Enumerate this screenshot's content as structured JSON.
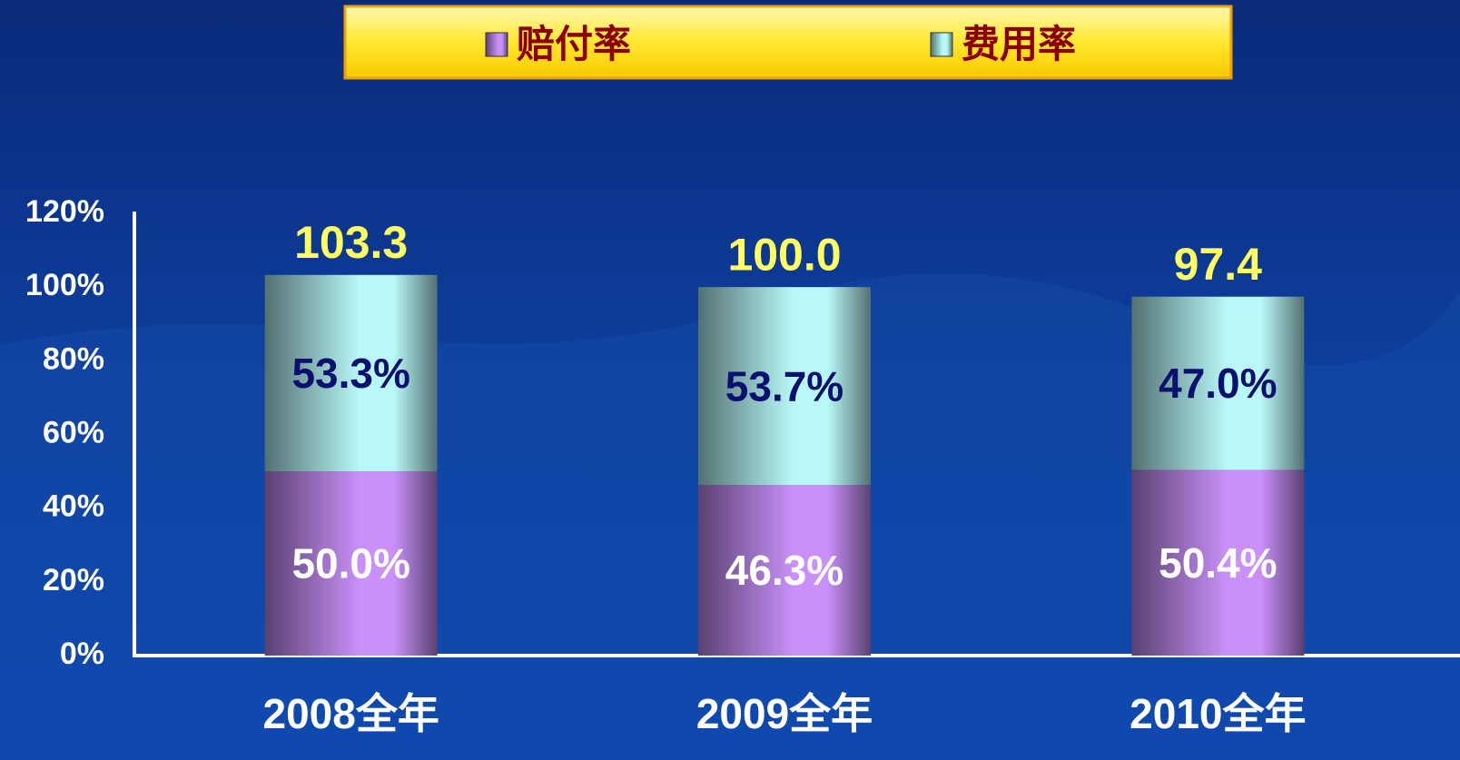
{
  "chart_data": {
    "type": "stacked_bar",
    "categories": [
      "2008全年",
      "2009全年",
      "2010全年"
    ],
    "series": [
      {
        "name": "赔付率",
        "color": "#c890f8",
        "values": [
          50.0,
          46.3,
          50.4
        ],
        "value_labels": [
          "50.0%",
          "46.3%",
          "50.4%"
        ]
      },
      {
        "name": "费用率",
        "color": "#b8f8f8",
        "values": [
          53.3,
          53.7,
          47.0
        ],
        "value_labels": [
          "53.3%",
          "53.7%",
          "47.0%"
        ]
      }
    ],
    "totals": {
      "values": [
        103.3,
        100.0,
        97.4
      ],
      "value_labels": [
        "103.3",
        "100.0",
        "97.4"
      ]
    },
    "ylim": [
      0,
      120
    ],
    "yticks": [
      {
        "value": 0,
        "label": "0%"
      },
      {
        "value": 20,
        "label": "20%"
      },
      {
        "value": 40,
        "label": "40%"
      },
      {
        "value": 60,
        "label": "60%"
      },
      {
        "value": 80,
        "label": "80%"
      },
      {
        "value": 100,
        "label": "100%"
      },
      {
        "value": 120,
        "label": "120%"
      }
    ],
    "grid": false
  }
}
